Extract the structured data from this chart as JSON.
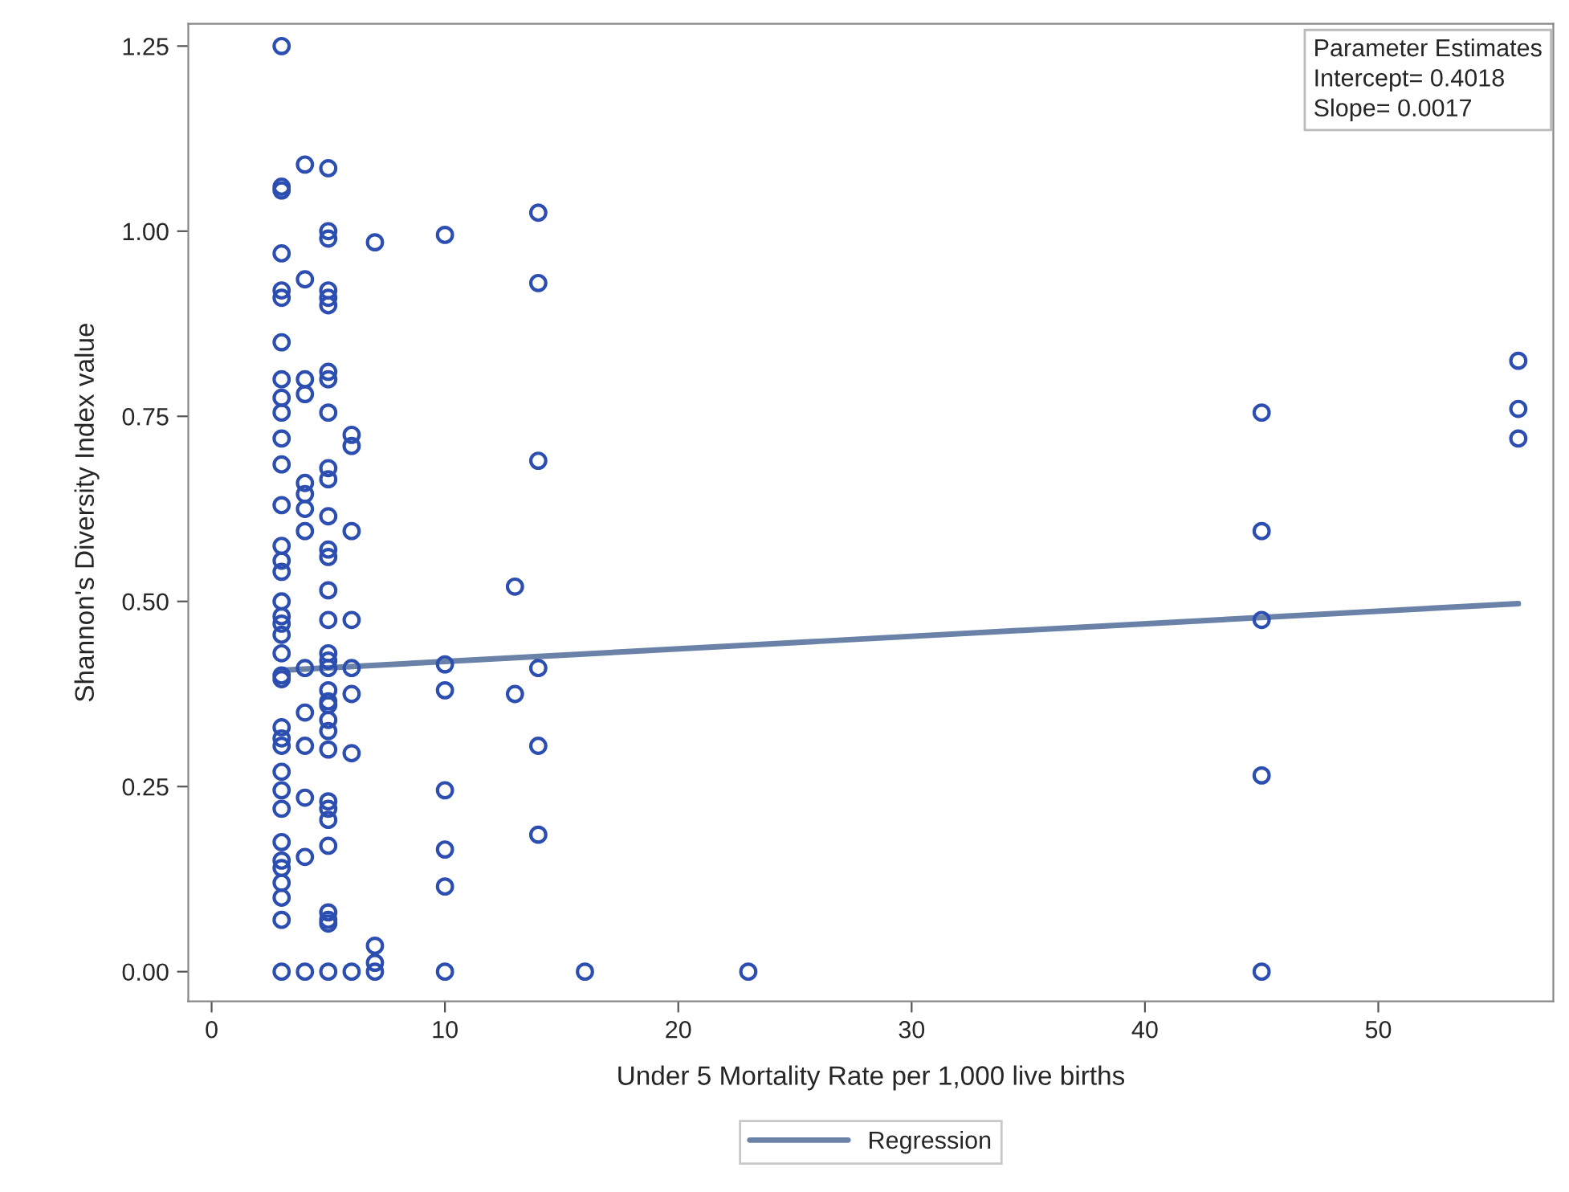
{
  "chart_data": {
    "type": "scatter",
    "xlabel": "Under 5 Mortality Rate per 1,000 live births",
    "ylabel": "Shannon's Diversity Index value",
    "xlim": [
      -1,
      57.5
    ],
    "ylim": [
      -0.04,
      1.28
    ],
    "xticks": [
      0,
      10,
      20,
      30,
      40,
      50
    ],
    "yticks": [
      {
        "value": 0,
        "label": "0.00"
      },
      {
        "value": 0.25,
        "label": "0.25"
      },
      {
        "value": 0.5,
        "label": "0.50"
      },
      {
        "value": 0.75,
        "label": "0.75"
      },
      {
        "value": 1.0,
        "label": "1.00"
      },
      {
        "value": 1.25,
        "label": "1.25"
      }
    ],
    "grid": false,
    "legend": "bottom",
    "annotations": [
      "Parameter Estimates\nIntercept= 0.4018\nSlope= 0.0017"
    ],
    "series": [
      {
        "marker": "circle",
        "color": "#2b4eb0",
        "x": [
          3,
          3,
          3,
          3,
          3,
          3,
          3,
          3,
          3,
          3,
          3,
          3,
          3,
          3,
          3,
          3,
          3,
          3,
          3,
          3,
          3,
          3,
          3,
          3,
          3,
          3,
          3,
          3,
          3,
          3,
          3,
          3,
          3,
          3,
          3,
          3,
          4,
          4,
          4,
          4,
          4,
          4,
          4,
          4,
          4,
          4,
          4,
          4,
          4,
          4,
          5,
          5,
          5,
          5,
          5,
          5,
          5,
          5,
          5,
          5,
          5,
          5,
          5,
          5,
          5,
          5,
          5,
          5,
          5,
          5,
          5,
          5,
          5,
          5,
          5,
          5,
          5,
          5,
          5,
          5,
          5,
          5,
          5,
          6,
          6,
          6,
          6,
          6,
          6,
          6,
          6,
          7,
          7,
          7,
          7,
          10,
          10,
          10,
          10,
          10,
          10,
          10,
          13,
          13,
          14,
          14,
          14,
          14,
          14,
          14,
          16,
          23,
          45,
          45,
          45,
          45,
          45,
          56,
          56,
          56
        ],
        "values": [
          1.25,
          1.06,
          1.055,
          0.97,
          0.92,
          0.91,
          0.85,
          0.8,
          0.775,
          0.755,
          0.72,
          0.685,
          0.63,
          0.575,
          0.555,
          0.54,
          0.5,
          0.48,
          0.47,
          0.455,
          0.43,
          0.4,
          0.395,
          0.33,
          0.315,
          0.305,
          0.27,
          0.245,
          0.22,
          0.175,
          0.15,
          0.14,
          0.12,
          0.1,
          0.07,
          0,
          1.09,
          0.935,
          0.8,
          0.78,
          0.66,
          0.645,
          0.625,
          0.595,
          0.41,
          0.35,
          0.305,
          0.235,
          0.155,
          0,
          1.085,
          1.0,
          0.99,
          0.92,
          0.91,
          0.9,
          0.81,
          0.8,
          0.755,
          0.68,
          0.665,
          0.615,
          0.57,
          0.56,
          0.515,
          0.475,
          0.43,
          0.42,
          0.41,
          0.38,
          0.365,
          0.36,
          0.34,
          0.325,
          0.3,
          0.23,
          0.22,
          0.205,
          0.17,
          0.08,
          0.07,
          0.065,
          0,
          0.725,
          0.71,
          0.595,
          0.475,
          0.41,
          0.375,
          0.295,
          0,
          0.985,
          0.035,
          0.012,
          0,
          0.995,
          0.415,
          0.38,
          0.245,
          0.165,
          0.115,
          0,
          0.52,
          0.375,
          1.025,
          0.93,
          0.69,
          0.41,
          0.305,
          0.185,
          0,
          0,
          0.755,
          0.595,
          0.475,
          0.265,
          0,
          0.825,
          0.76,
          0.72
        ]
      },
      {
        "type": "line",
        "name": "Regression",
        "marker": "none",
        "line_style": "solid",
        "color": "#6a81a8",
        "x": [
          3,
          56
        ],
        "values": [
          0.407,
          0.497
        ]
      }
    ]
  }
}
